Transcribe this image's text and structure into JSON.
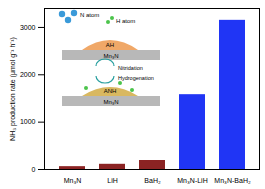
{
  "chart_data": {
    "type": "bar",
    "categories": [
      "Mn₃N",
      "LiH",
      "BaH₂",
      "Mn₃N-LiH",
      "Mn₃N-BaH₂"
    ],
    "values": [
      60,
      110,
      190,
      1580,
      3150
    ],
    "colors": [
      "#8b2323",
      "#8b2323",
      "#8b2323",
      "#2035f5",
      "#2035f5"
    ],
    "y_label": "NH₃ production rate (μmol g⁻¹ h⁻¹)",
    "ylim": [
      0,
      3400
    ],
    "yticks": [
      0,
      1000,
      2000,
      3000
    ],
    "annotations": [
      "N atom",
      "H atom",
      "AH",
      "Mn₃N",
      "Nitridation",
      "Hydrogenation",
      "ANH",
      "Mn₃N"
    ]
  }
}
